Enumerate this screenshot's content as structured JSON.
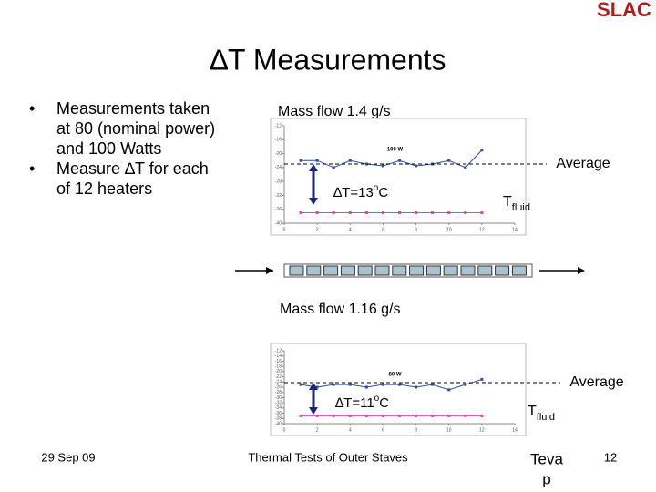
{
  "logo": "SLAC",
  "title": "∆T Measurements",
  "bullets": [
    [
      "Measurements taken",
      "at 80 (nominal power)",
      "and 100 Watts"
    ],
    [
      "Measure ∆T for each",
      "of 12 heaters"
    ]
  ],
  "panels": [
    {
      "label": "Mass flow 1.4 g/s",
      "delta": {
        "pre": "∆T=13",
        "sup": "o",
        "post": "C"
      },
      "average": "Average",
      "tfluid": {
        "main": "T",
        "sub": "fluid"
      },
      "chart": {
        "type": "line",
        "title": "100 W",
        "x": [
          1,
          2,
          3,
          4,
          5,
          6,
          7,
          8,
          9,
          10,
          11,
          12
        ],
        "series": [
          {
            "color": "#2f4f9f",
            "values": [
              -22,
              -22,
              -24,
              -22,
              -23,
              -23.5,
              -22,
              -23.5,
              -23,
              -22,
              -24,
              -19
            ]
          },
          {
            "color": "#e040c0",
            "values": [
              -37,
              -37,
              -37,
              -37,
              -37,
              -37,
              -37,
              -37,
              -37,
              -37,
              -37,
              -37
            ]
          }
        ],
        "xlim": [
          0,
          14
        ],
        "xticks": [
          0,
          2,
          4,
          6,
          8,
          10,
          12,
          14
        ],
        "ylim": [
          -40,
          -12
        ],
        "yticks": [
          -12,
          -16,
          -20,
          -24,
          -28,
          -32,
          -36,
          -40
        ]
      }
    },
    {
      "label": "Mass flow 1.16 g/s",
      "delta": {
        "pre": "∆T=11",
        "sup": "o",
        "post": "C"
      },
      "average": "Average",
      "tfluid": {
        "main": "T",
        "sub": "fluid"
      },
      "chart": {
        "type": "line",
        "title": "80 W",
        "x": [
          1,
          2,
          3,
          4,
          5,
          6,
          7,
          8,
          9,
          10,
          11,
          12
        ],
        "series": [
          {
            "color": "#2f4f9f",
            "values": [
              -25,
              -26,
              -25,
              -25,
              -26,
              -25,
              -25,
              -26,
              -25,
              -27,
              -25,
              -23
            ]
          },
          {
            "color": "#e040c0",
            "values": [
              -37,
              -37,
              -37,
              -37,
              -37,
              -37,
              -37,
              -37,
              -37,
              -37,
              -37,
              -37
            ]
          }
        ],
        "xlim": [
          0,
          14
        ],
        "xticks": [
          0,
          2,
          4,
          6,
          8,
          10,
          12,
          14
        ],
        "ylim": [
          -40,
          -12
        ],
        "yticks": [
          -12,
          -14,
          -16,
          -18,
          -20,
          -22,
          -24,
          -26,
          -28,
          -30,
          -32,
          -34,
          -36,
          -38,
          -40
        ]
      }
    }
  ],
  "footer": {
    "date": "29 Sep 09",
    "center": "Thermal Tests of Outer Staves",
    "author": [
      "Teva",
      "p"
    ],
    "page": "12"
  }
}
